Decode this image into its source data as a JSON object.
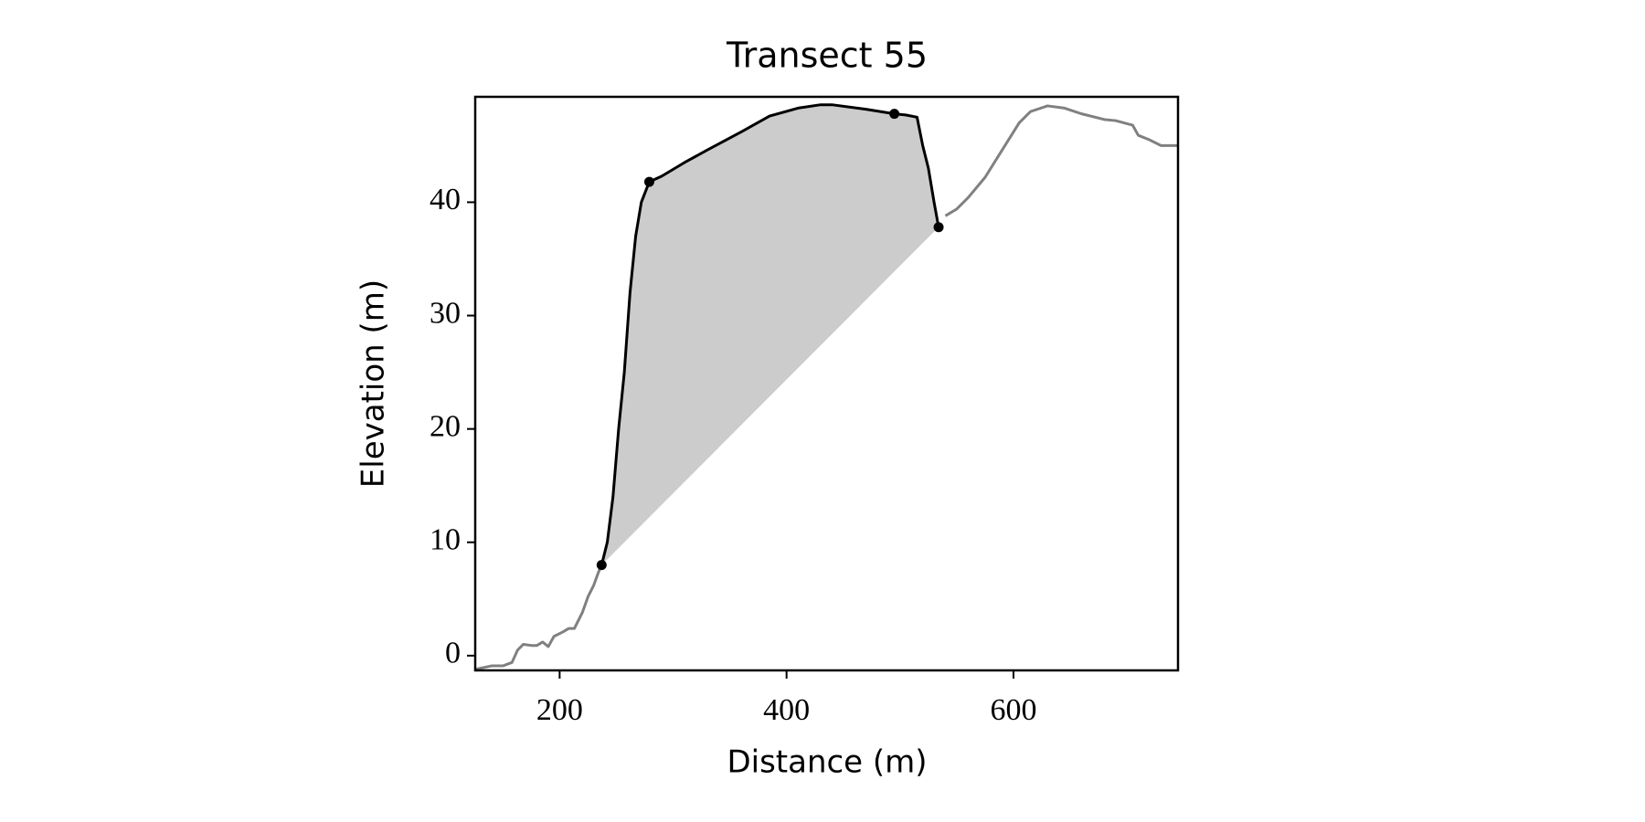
{
  "chart_data": {
    "type": "line",
    "title": "Transect 55",
    "xlabel": "Distance (m)",
    "ylabel": "Elevation (m)",
    "xlim": [
      125.6,
      745
    ],
    "ylim": [
      -1.3,
      49.3
    ],
    "xticks": [
      200,
      400,
      600
    ],
    "yticks": [
      0,
      10,
      20,
      30,
      40
    ],
    "grid": false,
    "series": [
      {
        "color": "#808080",
        "style": "line",
        "x": [
          126,
          140,
          150,
          158,
          163,
          168,
          175,
          180,
          185,
          190,
          195,
          203,
          208,
          213,
          220,
          225,
          230,
          234,
          237,
          534,
          540,
          550,
          560,
          575,
          590,
          605,
          615,
          630,
          645,
          660,
          680,
          690,
          705,
          710,
          720,
          730,
          745
        ],
        "values": [
          -1.2,
          -0.9,
          -0.9,
          -0.6,
          0.5,
          1.0,
          0.9,
          0.9,
          1.2,
          0.8,
          1.7,
          2.1,
          2.4,
          2.4,
          3.8,
          5.2,
          6.2,
          7.3,
          8.0,
          null,
          38.8,
          39.4,
          40.4,
          42.2,
          44.6,
          47.0,
          48.0,
          48.5,
          48.3,
          47.8,
          47.3,
          47.2,
          46.8,
          45.9,
          45.5,
          45.0,
          45.0
        ]
      },
      {
        "color": "#000000",
        "style": "line",
        "fill_color": "#cccccc",
        "x": [
          237,
          242,
          247,
          252,
          257,
          262,
          267,
          272,
          279,
          290,
          310,
          330,
          360,
          385,
          410,
          430,
          440,
          470,
          495,
          505,
          515,
          520,
          525,
          530,
          534
        ],
        "values": [
          8.0,
          10,
          14,
          20,
          25,
          32,
          37,
          40,
          41.8,
          42.3,
          43.5,
          44.6,
          46.2,
          47.6,
          48.3,
          48.6,
          48.6,
          48.2,
          47.8,
          47.7,
          47.5,
          45,
          43,
          40,
          37.8
        ]
      },
      {
        "color": "#000000",
        "style": "points",
        "x": [
          237,
          279,
          495,
          534
        ],
        "values": [
          8.0,
          41.8,
          47.8,
          37.8
        ]
      }
    ]
  }
}
